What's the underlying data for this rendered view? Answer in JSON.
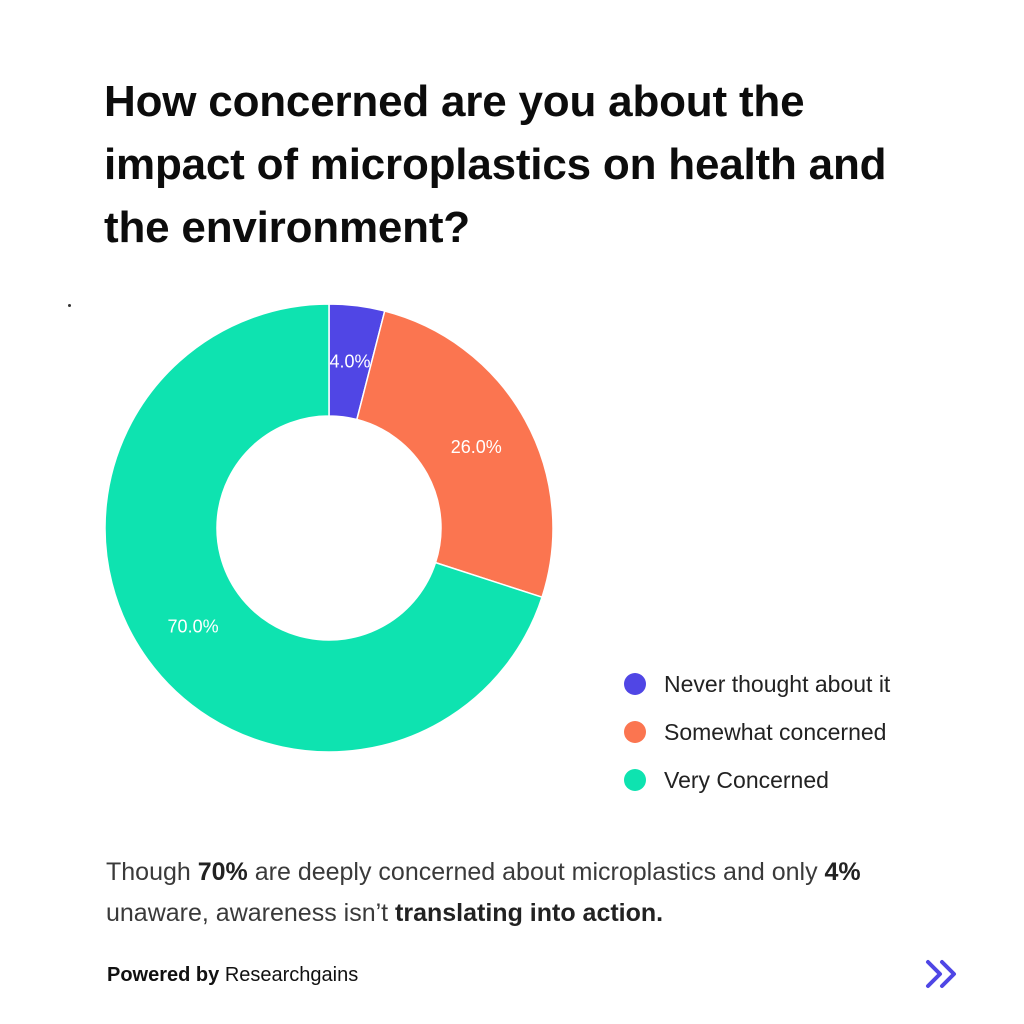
{
  "title_lines": [
    "How concerned are you about the",
    "impact of microplastics on health and",
    "the environment?"
  ],
  "chart_data": {
    "type": "pie",
    "categories": [
      "Never thought about it",
      "Somewhat concerned",
      "Very Concerned"
    ],
    "values": [
      4.0,
      26.0,
      70.0
    ],
    "value_labels": [
      "4.0%",
      "26.0%",
      "70.0%"
    ],
    "colors": [
      "#5046E5",
      "#FB7550",
      "#0EE3B0"
    ],
    "donut": true,
    "legend_position": "bottom-right"
  },
  "summary": {
    "part1": "Though ",
    "bold1": "70%",
    "part2": " are deeply concerned about microplastics and only ",
    "bold2": "4%",
    "part3": " unaware, awareness isn’t ",
    "bold3": "translating into action."
  },
  "footer": {
    "powered_label": "Powered by",
    "brand": "Researchgains"
  },
  "nav": {
    "next_icon": "double-chevron-right-icon",
    "icon_color": "#4F46E5"
  }
}
